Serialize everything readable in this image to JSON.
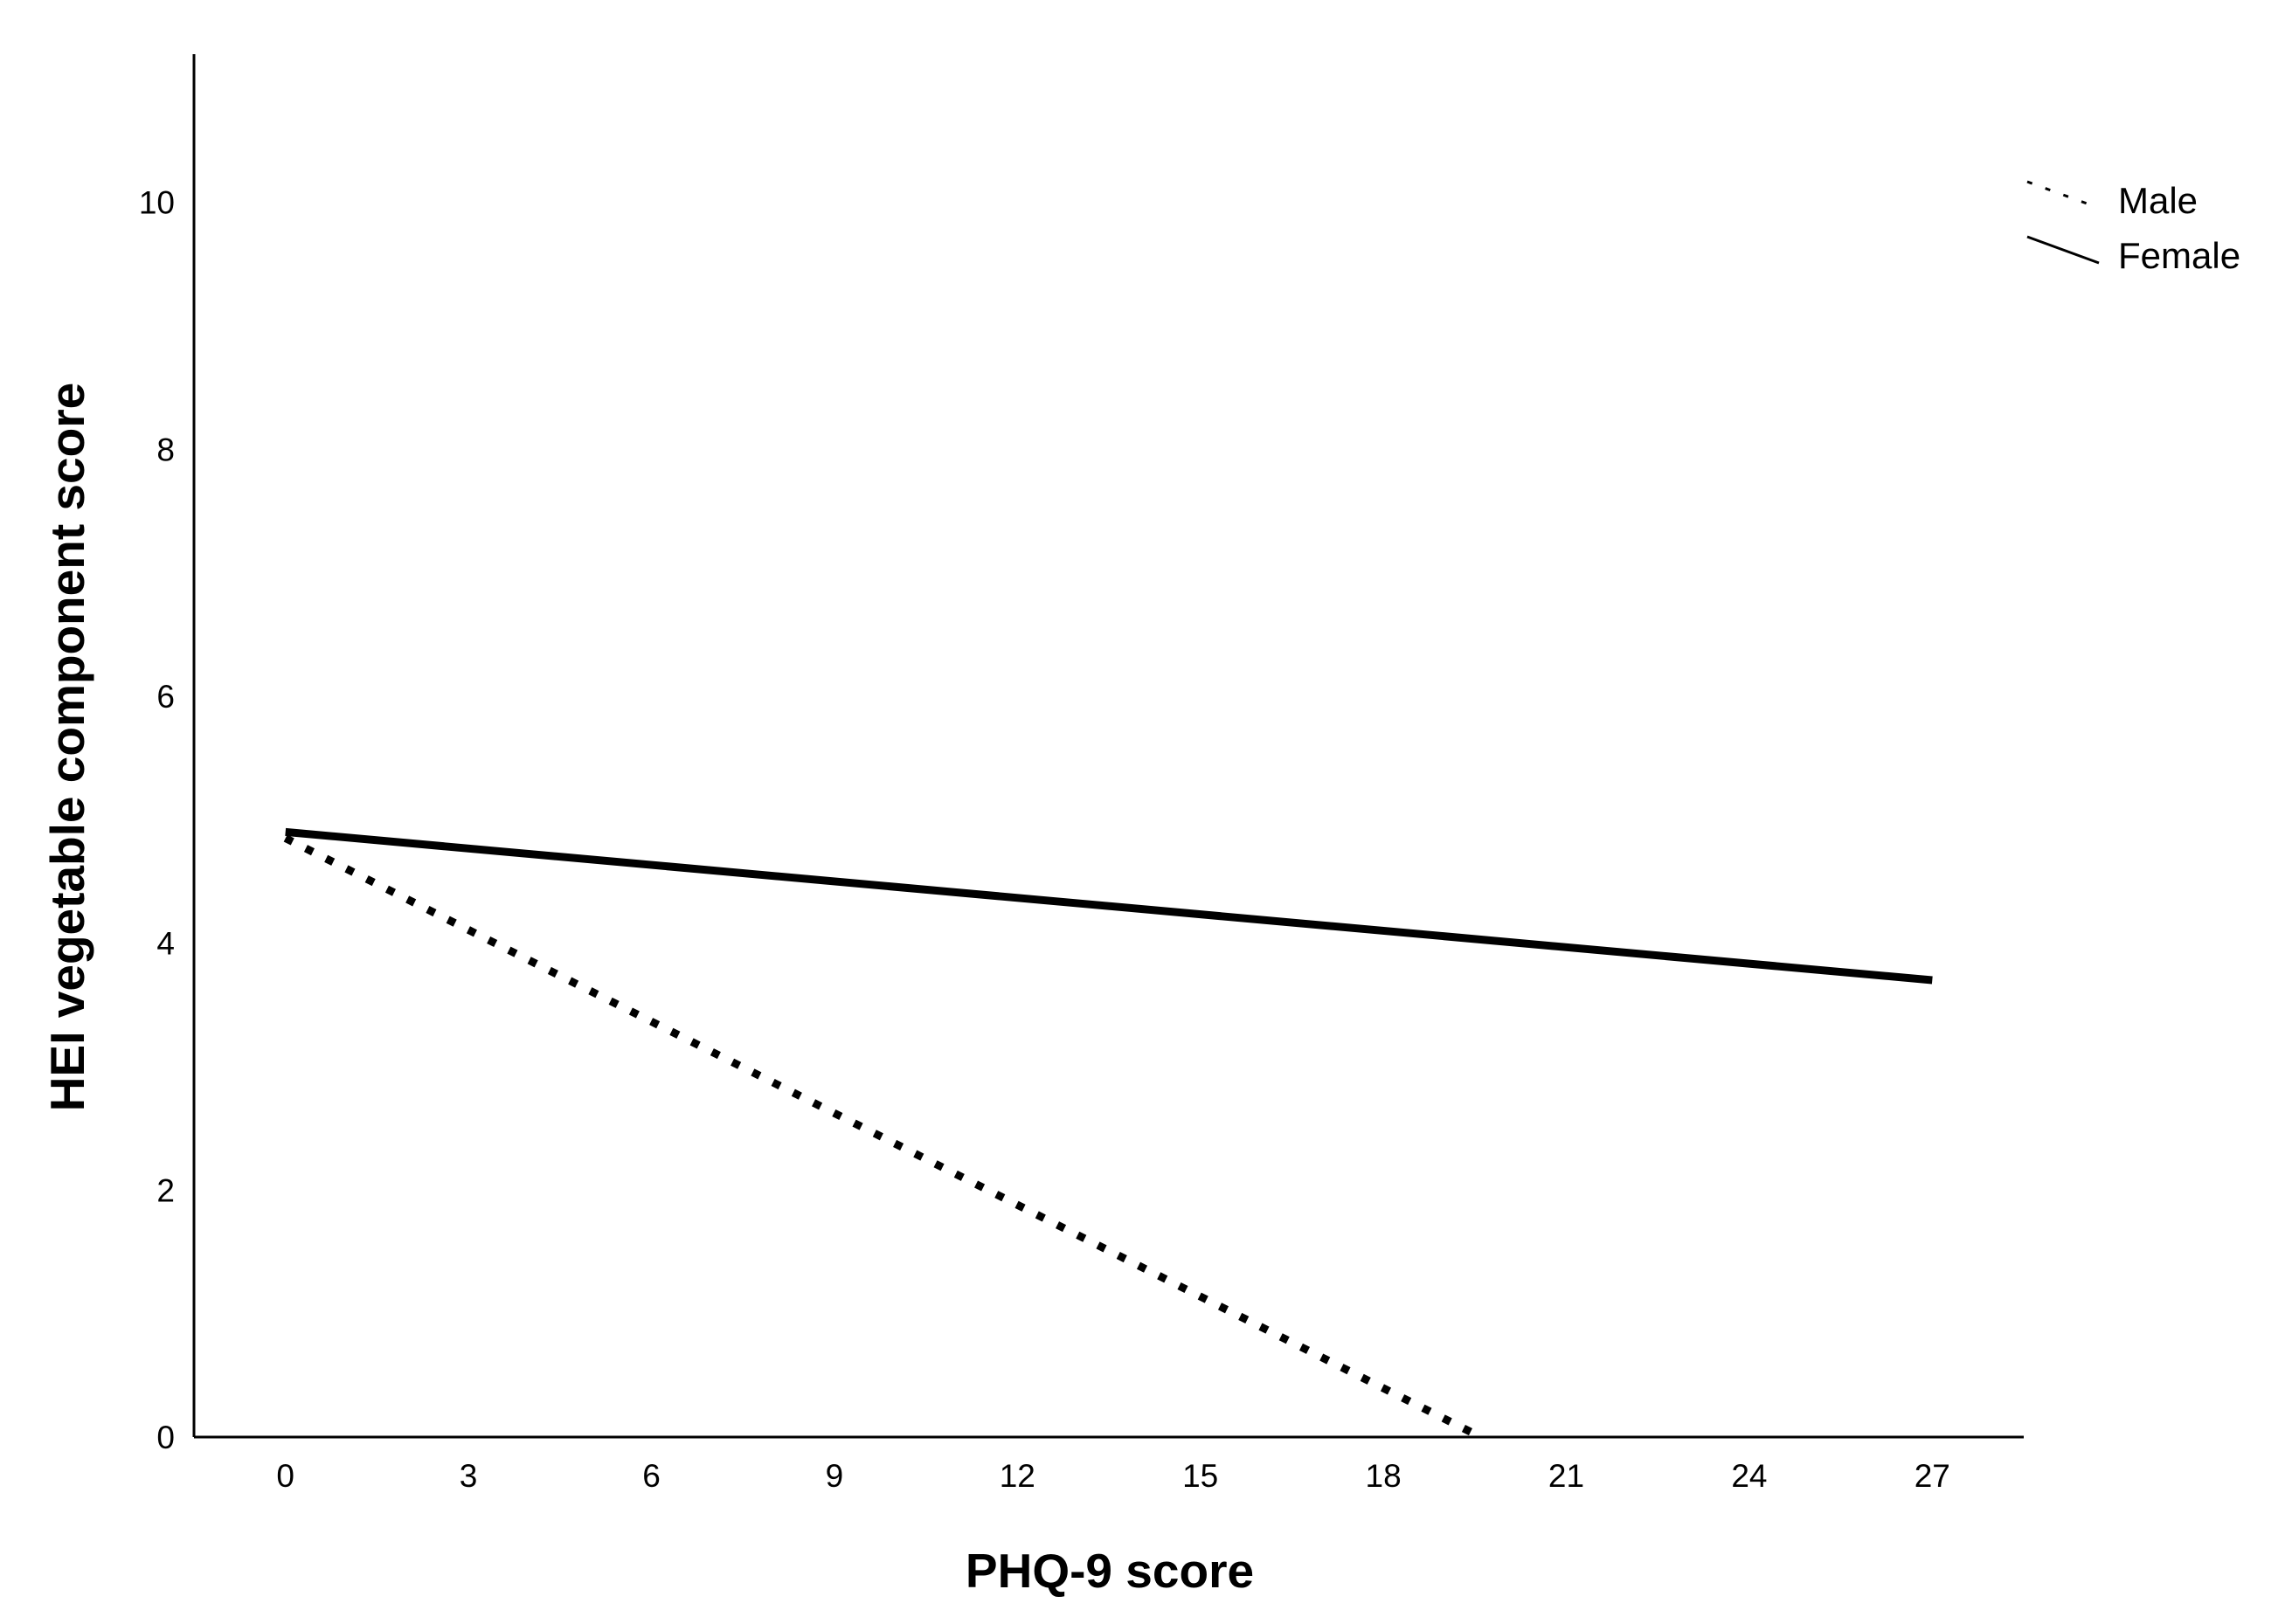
{
  "chart_data": {
    "type": "line",
    "xlabel": "PHQ-9 score",
    "ylabel": "HEI vegetable component score",
    "xlim": [
      -1.5,
      28.5
    ],
    "ylim": [
      0,
      11.2
    ],
    "x_ticks": [
      0,
      3,
      6,
      9,
      12,
      15,
      18,
      21,
      24,
      27
    ],
    "y_ticks": [
      0,
      2,
      4,
      6,
      8,
      10
    ],
    "grid": false,
    "legend_position": "top-right",
    "series": [
      {
        "name": "Male",
        "style": "dotted",
        "color": "#000000",
        "points": [
          {
            "x": 0,
            "y": 4.85
          },
          {
            "x": 19.6,
            "y": 0
          }
        ]
      },
      {
        "name": "Female",
        "style": "solid",
        "color": "#000000",
        "points": [
          {
            "x": 0,
            "y": 4.9
          },
          {
            "x": 27,
            "y": 3.7
          }
        ]
      }
    ]
  }
}
